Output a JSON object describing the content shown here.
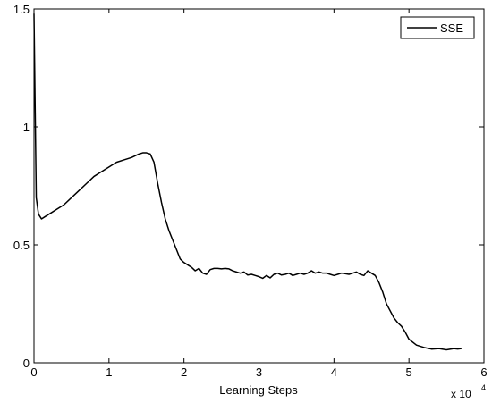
{
  "chart_data": {
    "type": "line",
    "title": "",
    "xlabel": "Learning Steps",
    "ylabel": "",
    "x_scale_label": "x 10",
    "x_scale_exponent": "4",
    "xlim": [
      0,
      6
    ],
    "ylim": [
      0,
      1.5
    ],
    "xticks": [
      "0",
      "1",
      "2",
      "3",
      "4",
      "5",
      "6"
    ],
    "yticks": [
      "0",
      "0.5",
      "1",
      "1.5"
    ],
    "grid": false,
    "legend_position": "top-right",
    "series": [
      {
        "name": "SSE",
        "color": "#000000",
        "x": [
          0.0,
          0.03,
          0.06,
          0.1,
          0.15,
          0.2,
          0.3,
          0.4,
          0.5,
          0.6,
          0.7,
          0.8,
          0.9,
          1.0,
          1.1,
          1.2,
          1.3,
          1.4,
          1.45,
          1.5,
          1.55,
          1.6,
          1.65,
          1.7,
          1.75,
          1.8,
          1.85,
          1.9,
          1.95,
          2.0,
          2.05,
          2.1,
          2.15,
          2.2,
          2.25,
          2.3,
          2.35,
          2.4,
          2.45,
          2.5,
          2.55,
          2.6,
          2.65,
          2.7,
          2.75,
          2.8,
          2.85,
          2.9,
          2.95,
          3.0,
          3.05,
          3.1,
          3.15,
          3.2,
          3.25,
          3.3,
          3.35,
          3.4,
          3.45,
          3.5,
          3.55,
          3.6,
          3.65,
          3.7,
          3.75,
          3.8,
          3.85,
          3.9,
          3.95,
          4.0,
          4.05,
          4.1,
          4.15,
          4.2,
          4.25,
          4.3,
          4.35,
          4.4,
          4.45,
          4.5,
          4.55,
          4.6,
          4.65,
          4.7,
          4.75,
          4.8,
          4.85,
          4.9,
          4.95,
          5.0,
          5.1,
          5.2,
          5.3,
          5.4,
          5.5,
          5.6,
          5.65,
          5.7
        ],
        "values": [
          1.48,
          0.7,
          0.63,
          0.61,
          0.62,
          0.63,
          0.65,
          0.67,
          0.7,
          0.73,
          0.76,
          0.79,
          0.81,
          0.83,
          0.85,
          0.86,
          0.87,
          0.885,
          0.89,
          0.89,
          0.885,
          0.85,
          0.76,
          0.68,
          0.61,
          0.56,
          0.52,
          0.48,
          0.44,
          0.425,
          0.415,
          0.405,
          0.39,
          0.4,
          0.38,
          0.375,
          0.395,
          0.4,
          0.4,
          0.398,
          0.4,
          0.398,
          0.39,
          0.385,
          0.38,
          0.385,
          0.372,
          0.375,
          0.37,
          0.365,
          0.358,
          0.37,
          0.36,
          0.375,
          0.38,
          0.372,
          0.375,
          0.38,
          0.37,
          0.375,
          0.38,
          0.375,
          0.38,
          0.39,
          0.38,
          0.385,
          0.38,
          0.38,
          0.375,
          0.37,
          0.375,
          0.38,
          0.378,
          0.375,
          0.38,
          0.385,
          0.375,
          0.37,
          0.39,
          0.38,
          0.37,
          0.34,
          0.3,
          0.25,
          0.22,
          0.19,
          0.17,
          0.155,
          0.13,
          0.1,
          0.075,
          0.065,
          0.058,
          0.06,
          0.055,
          0.06,
          0.058,
          0.06
        ]
      }
    ]
  }
}
